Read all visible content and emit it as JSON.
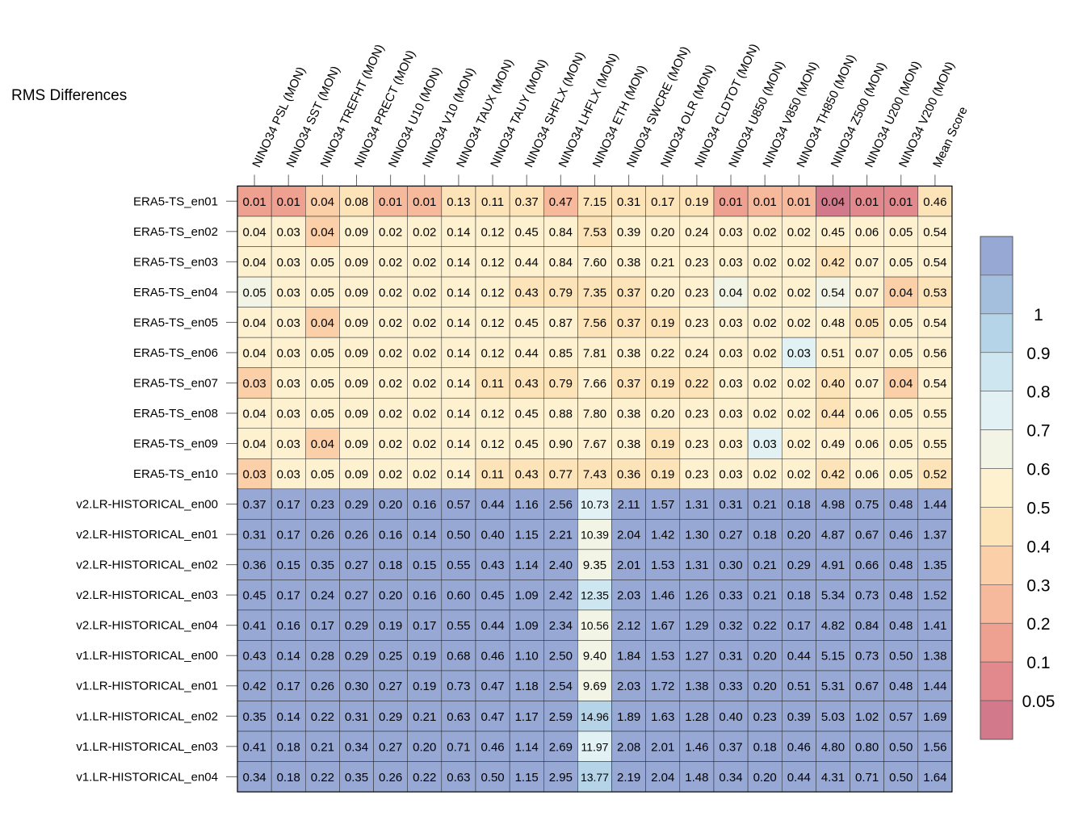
{
  "chart_data": {
    "type": "heatmap",
    "title": "RMS Differences",
    "columns": [
      "NINO34 PSL (MON)",
      "NINO34 SST (MON)",
      "NINO34 TREFHT (MON)",
      "NINO34 PRECT (MON)",
      "NINO34 U10 (MON)",
      "NINO34 V10 (MON)",
      "NINO34 TAUX (MON)",
      "NINO34 TAUY (MON)",
      "NINO34 SHFLX (MON)",
      "NINO34 LHFLX (MON)",
      "NINO34 ETH (MON)",
      "NINO34 SWCRE (MON)",
      "NINO34 OLR (MON)",
      "NINO34 CLDTOT (MON)",
      "NINO34 U850 (MON)",
      "NINO34 V850 (MON)",
      "NINO34 TH850 (MON)",
      "NINO34 Z500 (MON)",
      "NINO34 U200 (MON)",
      "NINO34 V200 (MON)",
      "Mean Score"
    ],
    "rows": [
      "ERA5-TS_en01",
      "ERA5-TS_en02",
      "ERA5-TS_en03",
      "ERA5-TS_en04",
      "ERA5-TS_en05",
      "ERA5-TS_en06",
      "ERA5-TS_en07",
      "ERA5-TS_en08",
      "ERA5-TS_en09",
      "ERA5-TS_en10",
      "v2.LR-HISTORICAL_en00",
      "v2.LR-HISTORICAL_en01",
      "v2.LR-HISTORICAL_en02",
      "v2.LR-HISTORICAL_en03",
      "v2.LR-HISTORICAL_en04",
      "v1.LR-HISTORICAL_en00",
      "v1.LR-HISTORICAL_en01",
      "v1.LR-HISTORICAL_en02",
      "v1.LR-HISTORICAL_en03",
      "v1.LR-HISTORICAL_en04"
    ],
    "values": [
      [
        "0.01",
        "0.01",
        "0.04",
        "0.08",
        "0.01",
        "0.01",
        "0.13",
        "0.11",
        "0.37",
        "0.47",
        "7.15",
        "0.31",
        "0.17",
        "0.19",
        "0.01",
        "0.01",
        "0.01",
        "0.04",
        "0.01",
        "0.01",
        "0.46"
      ],
      [
        "0.04",
        "0.03",
        "0.04",
        "0.09",
        "0.02",
        "0.02",
        "0.14",
        "0.12",
        "0.45",
        "0.84",
        "7.53",
        "0.39",
        "0.20",
        "0.24",
        "0.03",
        "0.02",
        "0.02",
        "0.45",
        "0.06",
        "0.05",
        "0.54"
      ],
      [
        "0.04",
        "0.03",
        "0.05",
        "0.09",
        "0.02",
        "0.02",
        "0.14",
        "0.12",
        "0.44",
        "0.84",
        "7.60",
        "0.38",
        "0.21",
        "0.23",
        "0.03",
        "0.02",
        "0.02",
        "0.42",
        "0.07",
        "0.05",
        "0.54"
      ],
      [
        "0.05",
        "0.03",
        "0.05",
        "0.09",
        "0.02",
        "0.02",
        "0.14",
        "0.12",
        "0.43",
        "0.79",
        "7.35",
        "0.37",
        "0.20",
        "0.23",
        "0.04",
        "0.02",
        "0.02",
        "0.54",
        "0.07",
        "0.04",
        "0.53"
      ],
      [
        "0.04",
        "0.03",
        "0.04",
        "0.09",
        "0.02",
        "0.02",
        "0.14",
        "0.12",
        "0.45",
        "0.87",
        "7.56",
        "0.37",
        "0.19",
        "0.23",
        "0.03",
        "0.02",
        "0.02",
        "0.48",
        "0.05",
        "0.05",
        "0.54"
      ],
      [
        "0.04",
        "0.03",
        "0.05",
        "0.09",
        "0.02",
        "0.02",
        "0.14",
        "0.12",
        "0.44",
        "0.85",
        "7.81",
        "0.38",
        "0.22",
        "0.24",
        "0.03",
        "0.02",
        "0.03",
        "0.51",
        "0.07",
        "0.05",
        "0.56"
      ],
      [
        "0.03",
        "0.03",
        "0.05",
        "0.09",
        "0.02",
        "0.02",
        "0.14",
        "0.11",
        "0.43",
        "0.79",
        "7.66",
        "0.37",
        "0.19",
        "0.22",
        "0.03",
        "0.02",
        "0.02",
        "0.40",
        "0.07",
        "0.04",
        "0.54"
      ],
      [
        "0.04",
        "0.03",
        "0.05",
        "0.09",
        "0.02",
        "0.02",
        "0.14",
        "0.12",
        "0.45",
        "0.88",
        "7.80",
        "0.38",
        "0.20",
        "0.23",
        "0.03",
        "0.02",
        "0.02",
        "0.44",
        "0.06",
        "0.05",
        "0.55"
      ],
      [
        "0.04",
        "0.03",
        "0.04",
        "0.09",
        "0.02",
        "0.02",
        "0.14",
        "0.12",
        "0.45",
        "0.90",
        "7.67",
        "0.38",
        "0.19",
        "0.23",
        "0.03",
        "0.03",
        "0.02",
        "0.49",
        "0.06",
        "0.05",
        "0.55"
      ],
      [
        "0.03",
        "0.03",
        "0.05",
        "0.09",
        "0.02",
        "0.02",
        "0.14",
        "0.11",
        "0.43",
        "0.77",
        "7.43",
        "0.36",
        "0.19",
        "0.23",
        "0.03",
        "0.02",
        "0.02",
        "0.42",
        "0.06",
        "0.05",
        "0.52"
      ],
      [
        "0.37",
        "0.17",
        "0.23",
        "0.29",
        "0.20",
        "0.16",
        "0.57",
        "0.44",
        "1.16",
        "2.56",
        "10.73",
        "2.11",
        "1.57",
        "1.31",
        "0.31",
        "0.21",
        "0.18",
        "4.98",
        "0.75",
        "0.48",
        "1.44"
      ],
      [
        "0.31",
        "0.17",
        "0.26",
        "0.26",
        "0.16",
        "0.14",
        "0.50",
        "0.40",
        "1.15",
        "2.21",
        "10.39",
        "2.04",
        "1.42",
        "1.30",
        "0.27",
        "0.18",
        "0.20",
        "4.87",
        "0.67",
        "0.46",
        "1.37"
      ],
      [
        "0.36",
        "0.15",
        "0.35",
        "0.27",
        "0.18",
        "0.15",
        "0.55",
        "0.43",
        "1.14",
        "2.40",
        "9.35",
        "2.01",
        "1.53",
        "1.31",
        "0.30",
        "0.21",
        "0.29",
        "4.91",
        "0.66",
        "0.48",
        "1.35"
      ],
      [
        "0.45",
        "0.17",
        "0.24",
        "0.27",
        "0.20",
        "0.16",
        "0.60",
        "0.45",
        "1.09",
        "2.42",
        "12.35",
        "2.03",
        "1.46",
        "1.26",
        "0.33",
        "0.21",
        "0.18",
        "5.34",
        "0.73",
        "0.48",
        "1.52"
      ],
      [
        "0.41",
        "0.16",
        "0.17",
        "0.29",
        "0.19",
        "0.17",
        "0.55",
        "0.44",
        "1.09",
        "2.34",
        "10.56",
        "2.12",
        "1.67",
        "1.29",
        "0.32",
        "0.22",
        "0.17",
        "4.82",
        "0.84",
        "0.48",
        "1.41"
      ],
      [
        "0.43",
        "0.14",
        "0.28",
        "0.29",
        "0.25",
        "0.19",
        "0.68",
        "0.46",
        "1.10",
        "2.50",
        "9.40",
        "1.84",
        "1.53",
        "1.27",
        "0.31",
        "0.20",
        "0.44",
        "5.15",
        "0.73",
        "0.50",
        "1.38"
      ],
      [
        "0.42",
        "0.17",
        "0.26",
        "0.30",
        "0.27",
        "0.19",
        "0.73",
        "0.47",
        "1.18",
        "2.54",
        "9.69",
        "2.03",
        "1.72",
        "1.38",
        "0.33",
        "0.20",
        "0.51",
        "5.31",
        "0.67",
        "0.48",
        "1.44"
      ],
      [
        "0.35",
        "0.14",
        "0.22",
        "0.31",
        "0.29",
        "0.21",
        "0.63",
        "0.47",
        "1.17",
        "2.59",
        "14.96",
        "1.89",
        "1.63",
        "1.28",
        "0.40",
        "0.23",
        "0.39",
        "5.03",
        "1.02",
        "0.57",
        "1.69"
      ],
      [
        "0.41",
        "0.18",
        "0.21",
        "0.34",
        "0.27",
        "0.20",
        "0.71",
        "0.46",
        "1.14",
        "2.69",
        "11.97",
        "2.08",
        "2.01",
        "1.46",
        "0.37",
        "0.18",
        "0.46",
        "4.80",
        "0.80",
        "0.50",
        "1.56"
      ],
      [
        "0.34",
        "0.18",
        "0.22",
        "0.35",
        "0.26",
        "0.22",
        "0.63",
        "0.50",
        "1.15",
        "2.95",
        "13.77",
        "2.19",
        "2.04",
        "1.48",
        "0.34",
        "0.20",
        "0.44",
        "4.31",
        "0.71",
        "0.50",
        "1.64"
      ]
    ],
    "colorbar": {
      "ticks": [
        "0.05",
        "0.1",
        "0.2",
        "0.3",
        "0.4",
        "0.5",
        "0.6",
        "0.7",
        "0.8",
        "0.9",
        "1"
      ],
      "bounds": [
        0,
        0.05,
        0.1,
        0.2,
        0.3,
        0.4,
        0.5,
        0.6,
        0.7,
        0.8,
        0.9,
        1,
        1.0001
      ],
      "colors": [
        "#d27a8b",
        "#e2898d",
        "#eea191",
        "#f6b99c",
        "#fbcfa8",
        "#fde3b8",
        "#fdf1cf",
        "#f2f4e6",
        "#e2f1f3",
        "#cde6ef",
        "#b6d4e7",
        "#a4bedd",
        "#98a8d5"
      ]
    }
  }
}
